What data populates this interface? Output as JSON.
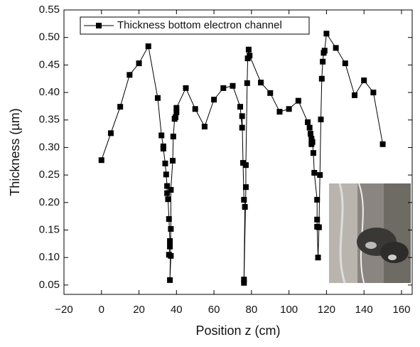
{
  "chart_data": {
    "type": "line",
    "x_label": "Position z (cm)",
    "y_label": "Thickness (µm)",
    "series": [
      {
        "name": "Thickness bottom electron channel",
        "color": "#000000",
        "x": [
          0,
          5,
          10,
          15,
          20,
          25,
          30,
          32,
          33,
          33,
          34,
          34.5,
          35,
          35,
          35.5,
          36,
          36.5,
          36.5,
          36,
          37,
          36.5,
          37,
          37,
          38,
          38.3,
          39,
          39.5,
          40,
          40,
          45,
          50,
          55,
          60,
          65,
          70,
          74,
          75,
          75,
          75.5,
          76,
          76.5,
          76,
          76,
          77,
          77,
          77.7,
          78,
          78.5,
          79,
          85,
          90,
          95,
          100,
          105,
          110,
          111,
          111.5,
          112,
          112,
          112.5,
          113,
          113.5,
          115,
          115,
          115,
          115.5,
          116,
          116.5,
          117,
          117.5,
          118,
          118.5,
          119,
          120,
          125,
          130,
          135,
          140,
          145,
          150
        ],
        "values": [
          0.277,
          0.326,
          0.374,
          0.432,
          0.453,
          0.484,
          0.39,
          0.322,
          0.302,
          0.298,
          0.271,
          0.251,
          0.23,
          0.217,
          0.206,
          0.17,
          0.13,
          0.12,
          0.105,
          0.103,
          0.059,
          0.152,
          0.223,
          0.276,
          0.32,
          0.352,
          0.355,
          0.364,
          0.372,
          0.408,
          0.37,
          0.338,
          0.387,
          0.408,
          0.412,
          0.374,
          0.336,
          0.357,
          0.272,
          0.205,
          0.192,
          0.06,
          0.054,
          0.228,
          0.268,
          0.417,
          0.462,
          0.478,
          0.467,
          0.418,
          0.399,
          0.365,
          0.37,
          0.385,
          0.346,
          0.336,
          0.325,
          0.316,
          0.306,
          0.31,
          0.29,
          0.254,
          0.205,
          0.169,
          0.156,
          0.1,
          0.155,
          0.25,
          0.351,
          0.425,
          0.456,
          0.472,
          0.476,
          0.507,
          0.481,
          0.453,
          0.395,
          0.422,
          0.4,
          0.306
        ]
      }
    ],
    "xlim": [
      -20,
      165.7
    ],
    "ylim": [
      0.033,
      0.55
    ],
    "xticks": [
      {
        "value": -20,
        "label": "−20"
      },
      0,
      20,
      40,
      60,
      80,
      100,
      120,
      140,
      160
    ],
    "yticks": [
      0.05,
      {
        "value": 0.1,
        "label": "0.10"
      },
      0.15,
      {
        "value": 0.2,
        "label": "0.20"
      },
      0.25,
      {
        "value": 0.3,
        "label": "0.30"
      },
      0.35,
      {
        "value": 0.4,
        "label": "0.40"
      },
      0.45,
      {
        "value": 0.5,
        "label": "0.50"
      },
      0.55
    ],
    "legend": "upper left"
  }
}
